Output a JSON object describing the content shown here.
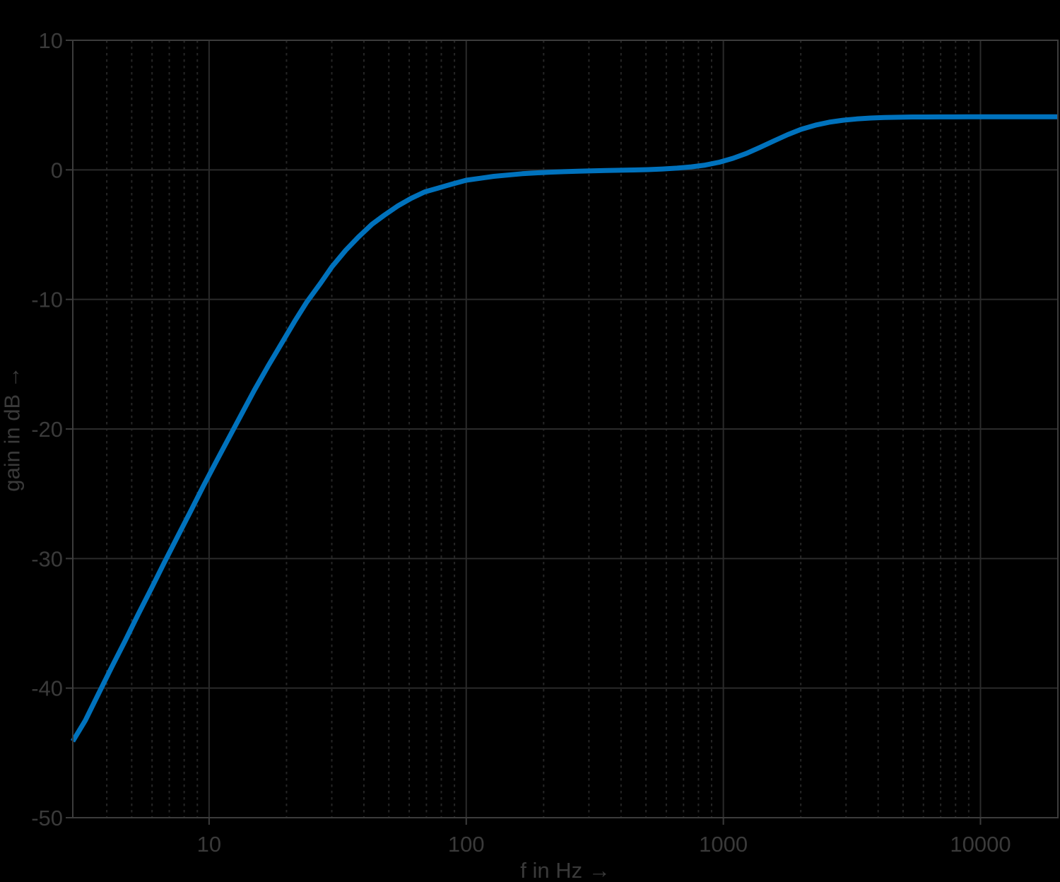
{
  "figure": {
    "background": "#000000",
    "text_color": "#3a3a3a",
    "axis_color": "#3c3c3c",
    "major_grid_color": "#2b2b2b",
    "minor_grid_color": "#262626"
  },
  "chart_data": {
    "type": "line",
    "title": "",
    "xlabel": "f in Hz →",
    "ylabel": "gain in dB →",
    "x_scale": "log",
    "y_scale": "linear",
    "xlim": [
      2.95,
      20000
    ],
    "ylim": [
      -50,
      10
    ],
    "grid": true,
    "minor_grid": true,
    "legend_position": "none",
    "x_ticks": [
      {
        "value": 10,
        "label": "10"
      },
      {
        "value": 100,
        "label": "100"
      },
      {
        "value": 1000,
        "label": "1000"
      },
      {
        "value": 10000,
        "label": "10000"
      }
    ],
    "y_ticks": [
      {
        "value": 10,
        "label": "10"
      },
      {
        "value": 0,
        "label": "0"
      },
      {
        "value": -10,
        "label": "-10"
      },
      {
        "value": -20,
        "label": "-20"
      },
      {
        "value": -30,
        "label": "-30"
      },
      {
        "value": -40,
        "label": "-40"
      },
      {
        "value": -50,
        "label": "-50"
      }
    ],
    "x_minor_gridlines": [
      4,
      5,
      6,
      7,
      8,
      9,
      20,
      30,
      40,
      50,
      60,
      70,
      80,
      90,
      200,
      300,
      400,
      500,
      600,
      700,
      800,
      900,
      2000,
      3000,
      4000,
      5000,
      6000,
      7000,
      8000,
      9000
    ],
    "series": [
      {
        "name": "gain",
        "color": "#0072bd",
        "line_width": 7,
        "points": [
          [
            2.95,
            -44.1
          ],
          [
            3.3,
            -42.5
          ],
          [
            3.7,
            -40.5
          ],
          [
            4.2,
            -38.3
          ],
          [
            4.7,
            -36.4
          ],
          [
            5.3,
            -34.3
          ],
          [
            6,
            -32.2
          ],
          [
            6.7,
            -30.3
          ],
          [
            7.5,
            -28.4
          ],
          [
            8.5,
            -26.3
          ],
          [
            9.5,
            -24.4
          ],
          [
            10.6,
            -22.6
          ],
          [
            12,
            -20.6
          ],
          [
            13.5,
            -18.7
          ],
          [
            15,
            -17.0
          ],
          [
            17,
            -15.1
          ],
          [
            19,
            -13.5
          ],
          [
            21.5,
            -11.7
          ],
          [
            24,
            -10.2
          ],
          [
            27,
            -8.8
          ],
          [
            30,
            -7.5
          ],
          [
            34,
            -6.2
          ],
          [
            38,
            -5.2
          ],
          [
            43,
            -4.2
          ],
          [
            48,
            -3.5
          ],
          [
            54,
            -2.8
          ],
          [
            61,
            -2.2
          ],
          [
            69,
            -1.7
          ],
          [
            78,
            -1.4
          ],
          [
            88,
            -1.1
          ],
          [
            100,
            -0.8
          ],
          [
            113,
            -0.65
          ],
          [
            128,
            -0.5
          ],
          [
            145,
            -0.4
          ],
          [
            165,
            -0.3
          ],
          [
            187,
            -0.23
          ],
          [
            212,
            -0.18
          ],
          [
            240,
            -0.14
          ],
          [
            272,
            -0.1
          ],
          [
            308,
            -0.08
          ],
          [
            350,
            -0.05
          ],
          [
            397,
            -0.03
          ],
          [
            450,
            -0.01
          ],
          [
            510,
            0.02
          ],
          [
            580,
            0.07
          ],
          [
            660,
            0.13
          ],
          [
            750,
            0.23
          ],
          [
            850,
            0.37
          ],
          [
            960,
            0.58
          ],
          [
            1090,
            0.89
          ],
          [
            1230,
            1.27
          ],
          [
            1390,
            1.74
          ],
          [
            1570,
            2.23
          ],
          [
            1780,
            2.72
          ],
          [
            2010,
            3.13
          ],
          [
            2280,
            3.45
          ],
          [
            2580,
            3.68
          ],
          [
            2920,
            3.83
          ],
          [
            3300,
            3.93
          ],
          [
            3740,
            4.0
          ],
          [
            4230,
            4.04
          ],
          [
            4790,
            4.06
          ],
          [
            5420,
            4.08
          ],
          [
            6140,
            4.08
          ],
          [
            6950,
            4.09
          ],
          [
            7860,
            4.09
          ],
          [
            8900,
            4.1
          ],
          [
            10100,
            4.1
          ],
          [
            11400,
            4.1
          ],
          [
            12900,
            4.1
          ],
          [
            14600,
            4.1
          ],
          [
            16600,
            4.1
          ],
          [
            18800,
            4.1
          ],
          [
            20000,
            4.1
          ]
        ]
      }
    ]
  }
}
